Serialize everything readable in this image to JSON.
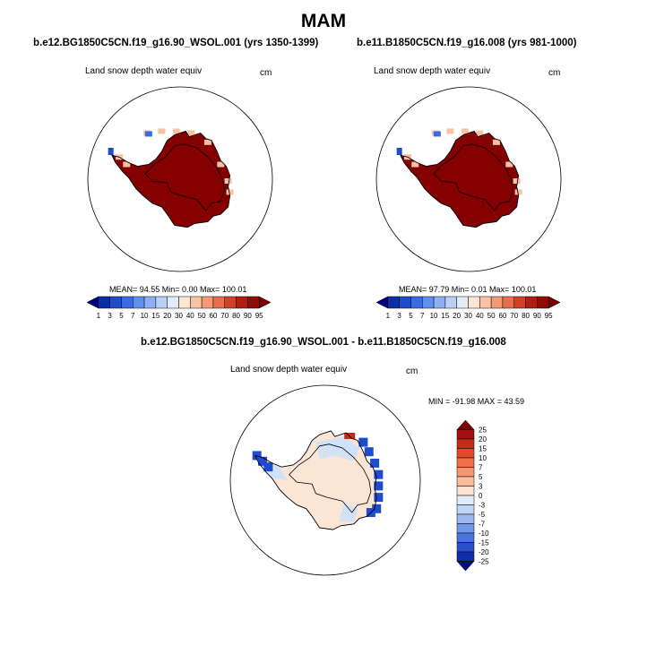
{
  "page_title": "MAM",
  "panels": [
    {
      "title": "b.e12.BG1850C5CN.f19_g16.90_WSOL.001 (yrs 1350-1399)",
      "variable": "Land snow depth water equiv",
      "units": "cm",
      "stats": "MEAN=  94.55   Min=    0.00   Max= 100.01"
    },
    {
      "title": "b.e11.B1850C5CN.f19_g16.008 (yrs 981-1000)",
      "variable": "Land snow depth water equiv",
      "units": "cm",
      "stats": "MEAN=  97.79   Min=    0.01   Max= 100.01"
    },
    {
      "title": "b.e12.BG1850C5CN.f19_g16.90_WSOL.001 - b.e11.B1850C5CN.f19_g16.008",
      "variable": "Land snow depth water equiv",
      "units": "cm",
      "stats": "MIN = -91.98  MAX =  43.59"
    }
  ],
  "chart_data": [
    {
      "type": "heatmap",
      "title": "b.e12.BG1850C5CN.f19_g16.90_WSOL.001 (yrs 1350-1399)",
      "projection": "south polar stereographic",
      "colorbar": {
        "orientation": "horizontal",
        "levels": [
          1,
          3,
          5,
          7,
          10,
          15,
          20,
          30,
          40,
          50,
          60,
          70,
          80,
          90,
          95
        ],
        "colors": [
          "#00007f",
          "#0a2ea8",
          "#1f4ccc",
          "#3a6ae6",
          "#5f8ff0",
          "#8db0f5",
          "#b8d0f8",
          "#e2ecf8",
          "#fde5d4",
          "#f9c2a4",
          "#f29a74",
          "#e86e4c",
          "#d2402a",
          "#b21b10",
          "#900c06",
          "#7a0000"
        ]
      },
      "summary": {
        "mean": 94.55,
        "min": 0.0,
        "max": 100.01
      }
    },
    {
      "type": "heatmap",
      "title": "b.e11.B1850C5CN.f19_g16.008 (yrs 981-1000)",
      "projection": "south polar stereographic",
      "colorbar": {
        "orientation": "horizontal",
        "levels": [
          1,
          3,
          5,
          7,
          10,
          15,
          20,
          30,
          40,
          50,
          60,
          70,
          80,
          90,
          95
        ],
        "colors": [
          "#00007f",
          "#0a2ea8",
          "#1f4ccc",
          "#3a6ae6",
          "#5f8ff0",
          "#8db0f5",
          "#b8d0f8",
          "#e2ecf8",
          "#fde5d4",
          "#f9c2a4",
          "#f29a74",
          "#e86e4c",
          "#d2402a",
          "#b21b10",
          "#900c06",
          "#7a0000"
        ]
      },
      "summary": {
        "mean": 97.79,
        "min": 0.01,
        "max": 100.01
      }
    },
    {
      "type": "heatmap",
      "title": "b.e12.BG1850C5CN.f19_g16.90_WSOL.001 - b.e11.B1850C5CN.f19_g16.008",
      "projection": "south polar stereographic",
      "colorbar": {
        "orientation": "vertical",
        "levels": [
          25,
          20,
          15,
          10,
          7,
          5,
          3,
          0,
          -3,
          -5,
          -7,
          -10,
          -15,
          -20,
          -25
        ],
        "colors": [
          "#7a0000",
          "#a01010",
          "#c82a1a",
          "#e04a2a",
          "#f07048",
          "#f8966e",
          "#fbbc9c",
          "#fde2d0",
          "#e2ecf8",
          "#c0d6f5",
          "#9ab8f0",
          "#7097ea",
          "#4a74e0",
          "#2a50cc",
          "#0e2ea8",
          "#00107a"
        ]
      },
      "summary": {
        "min": -91.98,
        "max": 43.59
      }
    }
  ],
  "colors": {
    "ice_dark_red": "#850000",
    "diff_neutral": "#fbe6d6",
    "diff_light_blue": "#d2e2f6"
  }
}
